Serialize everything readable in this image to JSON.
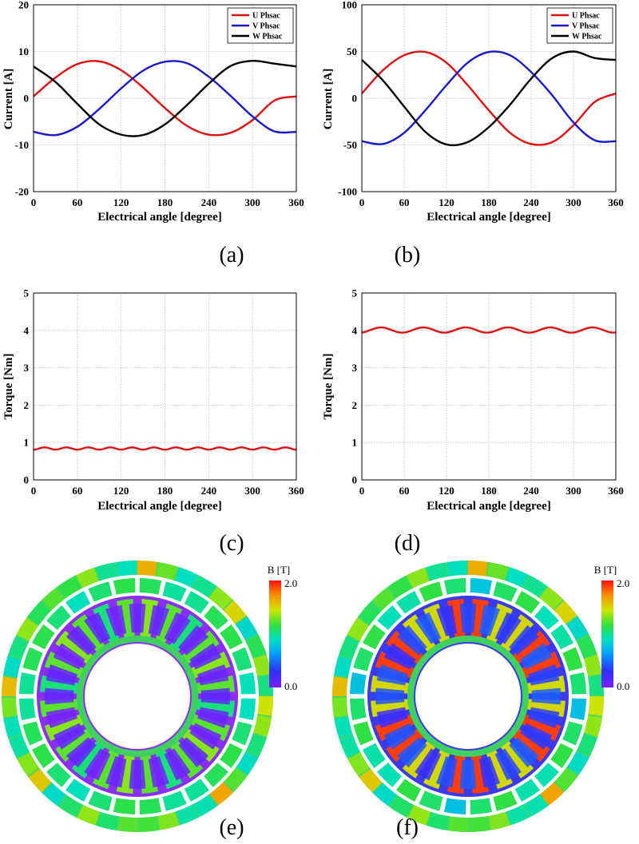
{
  "chart_data": [
    {
      "id": "a",
      "type": "line",
      "xlabel": "Electrical angle [degree]",
      "ylabel": "Current [A]",
      "xlim": [
        0,
        360
      ],
      "ylim": [
        -20,
        20
      ],
      "xticks": [
        "0",
        "60",
        "120",
        "180",
        "240",
        "300",
        "360"
      ],
      "yticks": [
        "20",
        "10",
        "0",
        "-10",
        "-20"
      ],
      "grid": true,
      "legend_position": "top-right",
      "x": [
        0,
        30,
        60,
        90,
        120,
        150,
        180,
        210,
        240,
        270,
        300,
        330,
        360
      ],
      "series": [
        {
          "name": "U Phsac",
          "color": "#e01010",
          "values": [
            0.4,
            4.4,
            7.3,
            7.9,
            6.0,
            2.3,
            -2.1,
            -5.9,
            -7.8,
            -7.4,
            -4.7,
            -0.5,
            0.4
          ]
        },
        {
          "name": "V Phsac",
          "color": "#1818d0",
          "values": [
            -7.2,
            -7.9,
            -6.1,
            -2.3,
            2.1,
            5.9,
            7.8,
            7.5,
            4.6,
            0.5,
            -3.9,
            -7.1,
            -7.2
          ]
        },
        {
          "name": "W Phsac",
          "color": "#000000",
          "values": [
            6.8,
            3.5,
            -1.2,
            -5.6,
            -7.8,
            -7.9,
            -5.6,
            -1.5,
            3.1,
            6.9,
            8.0,
            7.4,
            6.8
          ]
        }
      ],
      "caption": "(a)"
    },
    {
      "id": "b",
      "type": "line",
      "xlabel": "Electrical angle [degree]",
      "ylabel": "Current [A]",
      "xlim": [
        0,
        360
      ],
      "ylim": [
        -100,
        100
      ],
      "xticks": [
        "0",
        "60",
        "120",
        "180",
        "240",
        "300",
        "360"
      ],
      "yticks": [
        "100",
        "50",
        "0",
        "-50",
        "-100"
      ],
      "grid": true,
      "legend_position": "top-right",
      "x": [
        0,
        30,
        60,
        90,
        120,
        150,
        180,
        210,
        240,
        270,
        300,
        330,
        360
      ],
      "series": [
        {
          "name": "U Phsac",
          "color": "#e01010",
          "values": [
            5,
            30,
            46,
            49.5,
            38,
            14,
            -13,
            -37,
            -49,
            -47,
            -29,
            -4,
            5
          ]
        },
        {
          "name": "V Phsac",
          "color": "#1818d0",
          "values": [
            -46,
            -49,
            -37,
            -13,
            14,
            38,
            49.5,
            46,
            28,
            3,
            -26,
            -45,
            -46
          ]
        },
        {
          "name": "W Phsac",
          "color": "#000000",
          "values": [
            41,
            19,
            -9,
            -36,
            -49.5,
            -47,
            -31,
            -7,
            21,
            43,
            50,
            43,
            41
          ]
        }
      ],
      "caption": "(b)"
    },
    {
      "id": "c",
      "type": "line",
      "xlabel": "Electrical angle [degree]",
      "ylabel": "Torque [Nm]",
      "xlim": [
        0,
        360
      ],
      "ylim": [
        0,
        5
      ],
      "xticks": [
        "0",
        "60",
        "120",
        "180",
        "240",
        "300",
        "360"
      ],
      "yticks": [
        "5",
        "4",
        "3",
        "2",
        "1",
        "0"
      ],
      "grid": true,
      "series": [
        {
          "name": "Torque",
          "color": "#e01010",
          "mean": 0.84,
          "ripple": 0.03,
          "ripple_periods": 12
        }
      ],
      "caption": "(c)"
    },
    {
      "id": "d",
      "type": "line",
      "xlabel": "Electrical angle [degree]",
      "ylabel": "Torque [Nm]",
      "xlim": [
        0,
        360
      ],
      "ylim": [
        0,
        5
      ],
      "xticks": [
        "0",
        "60",
        "120",
        "180",
        "240",
        "300",
        "360"
      ],
      "yticks": [
        "5",
        "4",
        "3",
        "2",
        "1",
        "0"
      ],
      "grid": true,
      "series": [
        {
          "name": "Torque",
          "color": "#e01010",
          "mean": 4.01,
          "ripple": 0.07,
          "ripple_periods": 6
        }
      ],
      "caption": "(d)"
    }
  ],
  "field_maps": [
    {
      "id": "e",
      "title": "B [T]",
      "max_label": "2.0",
      "min_label": "0.0",
      "caption": "(e)",
      "level": "low"
    },
    {
      "id": "f",
      "title": "B [T]",
      "max_label": "2.0",
      "min_label": "0.0",
      "caption": "(f)",
      "level": "high"
    }
  ]
}
